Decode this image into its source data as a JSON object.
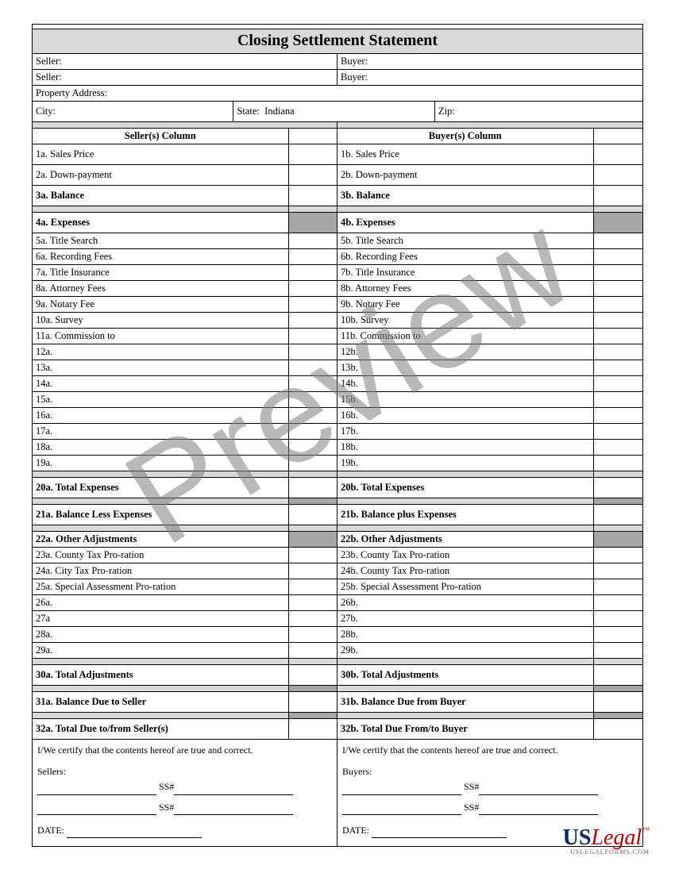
{
  "title": "Closing Settlement Statement",
  "top": {
    "seller_label": "Seller:",
    "buyer_label": "Buyer:",
    "property_address_label": "Property Address:",
    "city_label": "City:",
    "state_label": "State:",
    "state_value": "Indiana",
    "zip_label": "Zip:"
  },
  "columns": {
    "seller_heading": "Seller(s) Column",
    "buyer_heading": "Buyer(s) Column"
  },
  "seller_rows": [
    {
      "label": "1a. Sales Price",
      "bold": false,
      "tall": true
    },
    {
      "label": "2a. Down-payment",
      "bold": false,
      "tall": true
    },
    {
      "label": "3a. Balance",
      "bold": true,
      "tall": true
    }
  ],
  "buyer_rows": [
    {
      "label": "1b. Sales Price",
      "bold": false,
      "tall": true
    },
    {
      "label": "2b. Down-payment",
      "bold": false,
      "tall": true
    },
    {
      "label": "3b. Balance",
      "bold": true,
      "tall": true
    }
  ],
  "expenses_header": {
    "a": "4a. Expenses",
    "b": "4b. Expenses"
  },
  "seller_expenses": [
    "5a. Title Search",
    "6a. Recording Fees",
    "7a. Title Insurance",
    "8a. Attorney Fees",
    "9a. Notary Fee",
    "10a. Survey",
    "11a. Commission to",
    "12a.",
    "13a.",
    "14a.",
    "15a.",
    "16a.",
    "17a.",
    "18a.",
    "19a."
  ],
  "buyer_expenses": [
    "5b. Title Search",
    "6b. Recording Fees",
    "7b. Title Insurance",
    "8b. Attorney Fees",
    "9b. Notary Fee",
    "10b. Survey",
    "11b. Commission to",
    "12b.",
    "13b.",
    "14b.",
    "15b.",
    "16b.",
    "17b.",
    "18b.",
    "19b."
  ],
  "totals": {
    "t20a": "20a. Total Expenses",
    "t20b": "20b. Total Expenses",
    "t21a": "21a. Balance Less Expenses",
    "t21b": "21b. Balance plus Expenses",
    "t22a": "22a. Other Adjustments",
    "t22b": "22b. Other Adjustments"
  },
  "seller_adj": [
    "23a. County Tax Pro-ration",
    "24a. City Tax Pro-ration",
    "25a. Special Assessment Pro-ration",
    "26a.",
    "27a",
    "28a.",
    "29a."
  ],
  "buyer_adj": [
    "23b. County Tax Pro-ration",
    "24b. County Tax Pro-ration",
    "25b. Special Assessment Pro-ration",
    "26b.",
    "27b.",
    "28b.",
    "29b."
  ],
  "finals": {
    "t30a": "30a. Total Adjustments",
    "t30b": "30b. Total Adjustments",
    "t31a": "31a. Balance Due to Seller",
    "t31b": "31b. Balance Due from Buyer",
    "t32a": "32a. Total Due to/from Seller(s)",
    "t32b": "32b. Total Due From/to Buyer"
  },
  "cert": {
    "text": "I/We certify that the contents hereof are true and correct.",
    "sellers_label": "Sellers:",
    "buyers_label": "Buyers:",
    "ss_label": "SS#",
    "date_label": "DATE:"
  },
  "watermark": "Preview",
  "brand": {
    "us": "US",
    "legal": "Legal",
    "tm": "™",
    "sub": "USLEGALFORMS.COM"
  }
}
